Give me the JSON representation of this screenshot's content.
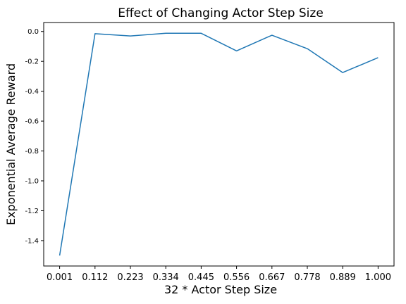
{
  "chart_data": {
    "type": "line",
    "title": "Effect of Changing Actor Step Size",
    "xlabel": "32 * Actor Step Size",
    "ylabel": "Exponential Average Reward",
    "x": [
      "0.001",
      "0.112",
      "0.223",
      "0.334",
      "0.445",
      "0.556",
      "0.667",
      "0.778",
      "0.889",
      "1.000"
    ],
    "series": [
      {
        "values": [
          -1.5,
          -0.015,
          -0.03,
          -0.012,
          -0.012,
          -0.13,
          -0.025,
          -0.115,
          -0.275,
          -0.175
        ],
        "color": "#1f77b4"
      }
    ],
    "y_ticks": [
      "0.0",
      "-0.2",
      "-0.4",
      "-0.6",
      "-0.8",
      "-1.0",
      "-1.2",
      "-1.4"
    ],
    "ylim": [
      -1.57,
      0.06
    ],
    "grid": false,
    "legend": "none"
  }
}
